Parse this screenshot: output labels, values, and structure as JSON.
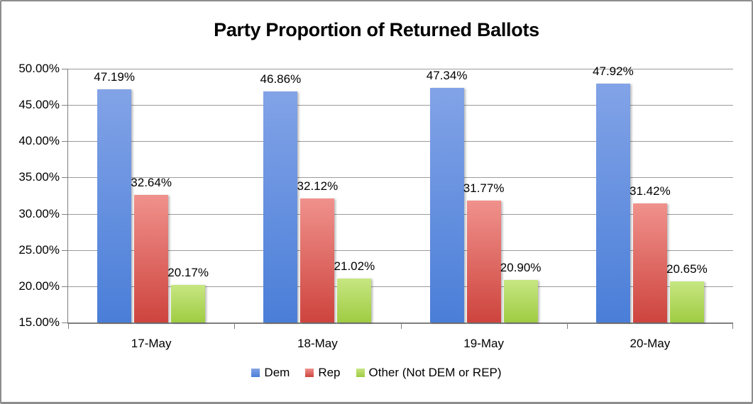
{
  "frame": {
    "background": "#ffffff",
    "border_color": "#8d8d8d"
  },
  "chart_data": {
    "type": "bar",
    "title": "Party Proportion of Returned Ballots",
    "categories": [
      "17-May",
      "18-May",
      "19-May",
      "20-May"
    ],
    "series": [
      {
        "name": "Dem",
        "slug": "dem",
        "values": [
          47.19,
          46.86,
          47.34,
          47.92
        ],
        "labels": [
          "47.19%",
          "46.86%",
          "47.34%",
          "47.92%"
        ],
        "color_top": "#82a3e7",
        "color_bottom": "#4a7ed8"
      },
      {
        "name": "Rep",
        "slug": "rep",
        "values": [
          32.64,
          32.12,
          31.77,
          31.42
        ],
        "labels": [
          "32.64%",
          "32.12%",
          "31.77%",
          "31.42%"
        ],
        "color_top": "#f0918c",
        "color_bottom": "#ce443e"
      },
      {
        "name": "Other (Not DEM or REP)",
        "slug": "other",
        "values": [
          20.17,
          21.02,
          20.9,
          20.65
        ],
        "labels": [
          "20.17%",
          "21.02%",
          "20.90%",
          "20.65%"
        ],
        "color_top": "#c7e682",
        "color_bottom": "#9fcc42"
      }
    ],
    "y_axis": {
      "min": 15,
      "max": 50,
      "step": 5,
      "tick_labels": [
        "50.00%",
        "45.00%",
        "40.00%",
        "35.00%",
        "30.00%",
        "25.00%",
        "20.00%",
        "15.00%"
      ]
    },
    "x_axis": {
      "tick_labels": [
        "17-May",
        "18-May",
        "19-May",
        "20-May"
      ]
    },
    "legend": {
      "position": "bottom",
      "entries": [
        "Dem",
        "Rep",
        "Other (Not DEM or REP)"
      ]
    },
    "grid": true,
    "gridline_color": "#9b9b9b",
    "axis_color": "#7f7f7f",
    "ylim": [
      15,
      50
    ]
  }
}
